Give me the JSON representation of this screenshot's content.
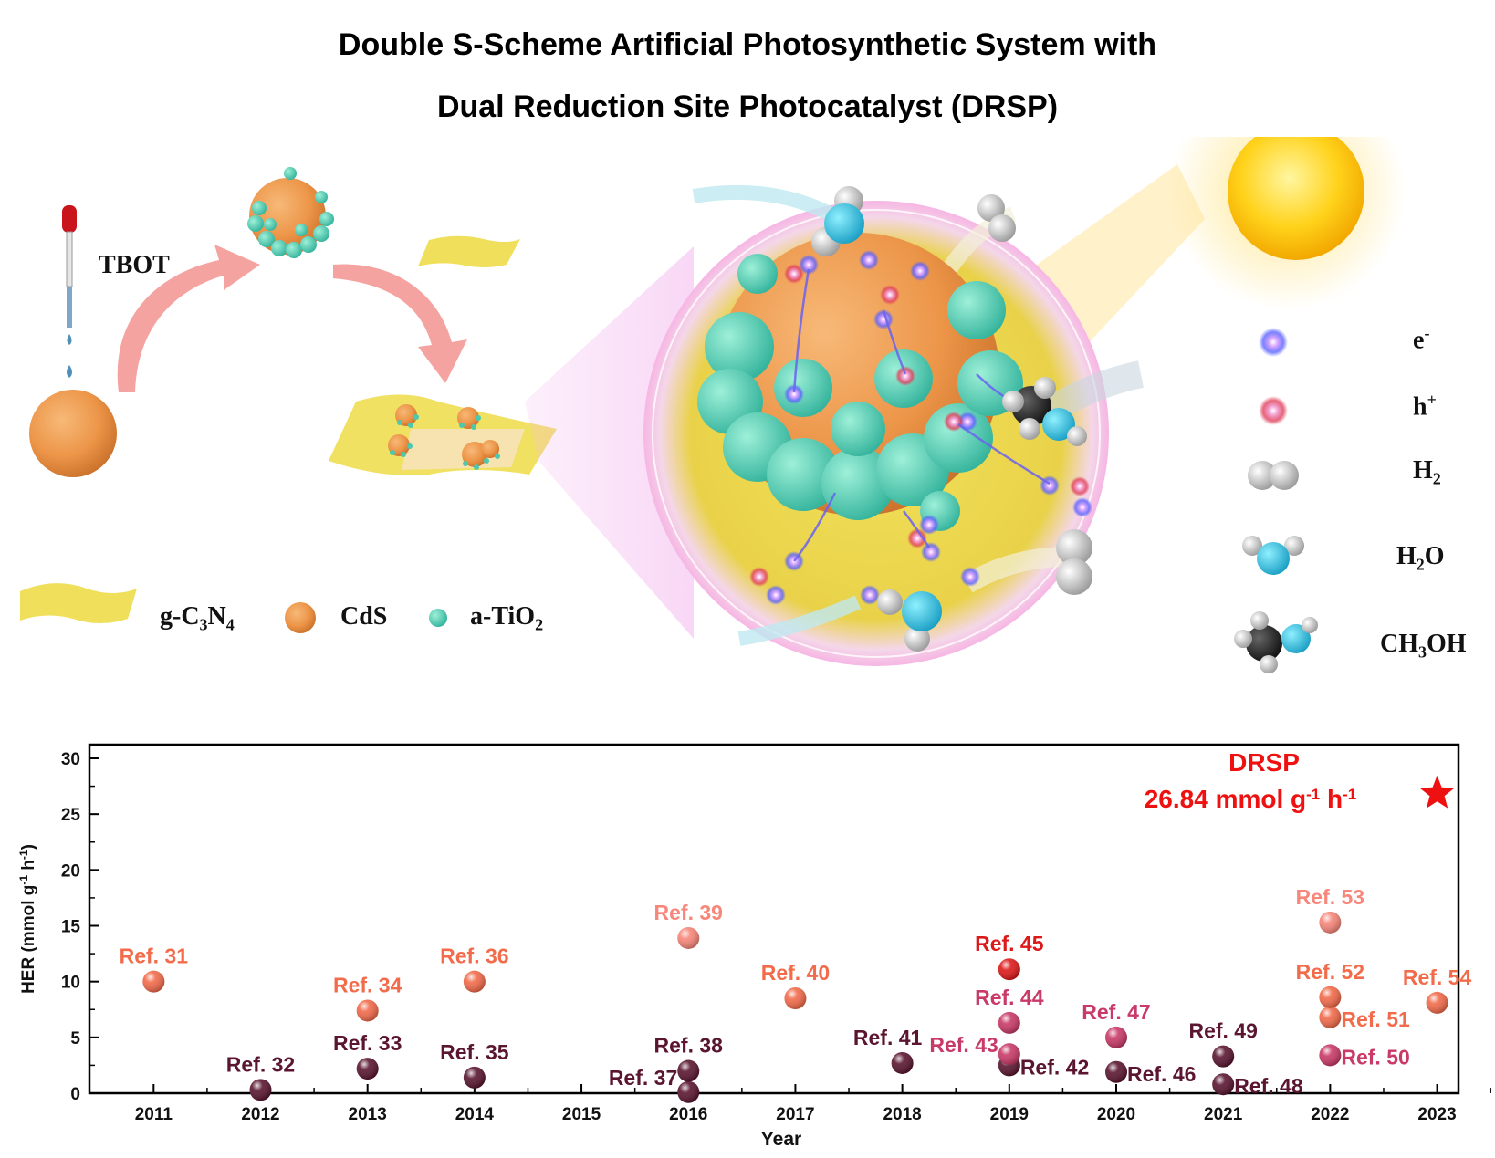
{
  "title": {
    "line1": "Double S-Scheme Artificial Photosynthetic System with",
    "line2": "Dual Reduction Site Photocatalyst (DRSP)"
  },
  "scheme": {
    "reagent_label": "TBOT",
    "materials": [
      {
        "key": "gcn",
        "label": "g-C",
        "sub1": "3",
        "mid": "N",
        "sub2": "4",
        "color": "#f0df5a"
      },
      {
        "key": "cds",
        "label": "CdS",
        "color": "#f0a050"
      },
      {
        "key": "tio2",
        "label": "a-TiO",
        "sub": "2",
        "color": "#4cc7b0"
      }
    ]
  },
  "species_legend": [
    {
      "key": "electron",
      "label": "e",
      "sup": "-",
      "icon": "electron-icon",
      "color": "#5a63ff"
    },
    {
      "key": "hole",
      "label": "h",
      "sup": "+",
      "icon": "hole-icon",
      "color": "#e0405a"
    },
    {
      "key": "h2",
      "label": "H",
      "sub": "2",
      "icon": "hydrogen-molecule-icon"
    },
    {
      "key": "h2o",
      "label": "H",
      "sub": "2",
      "tail": "O",
      "icon": "water-molecule-icon"
    },
    {
      "key": "ch3oh",
      "label": "CH",
      "sub": "3",
      "tail": "OH",
      "icon": "methanol-molecule-icon"
    }
  ],
  "chart_data": {
    "type": "scatter",
    "xlabel": "Year",
    "ylabel": "HER (mmol g-1 h-1)",
    "ylabel_parts": {
      "pre": "HER (mmol g",
      "s1": "-1",
      "mid": " h",
      "s2": "-1",
      "post": ")"
    },
    "xlim": [
      2010.4,
      2023.2
    ],
    "ylim": [
      0,
      30
    ],
    "xticks": [
      2011,
      2012,
      2013,
      2014,
      2015,
      2016,
      2017,
      2018,
      2019,
      2020,
      2021,
      2022,
      2023
    ],
    "yticks": [
      0,
      5,
      10,
      15,
      20,
      25,
      30
    ],
    "highlight": {
      "name": "DRSP",
      "value_text": "26.84 mmol g",
      "value_sup1": "-1",
      "value_mid": " h",
      "value_sup2": "-1",
      "x": 2023,
      "y": 26.84,
      "color": "#ee1111",
      "marker": "star"
    },
    "points": [
      {
        "label": "Ref. 31",
        "x": 2011,
        "y": 10.0,
        "color": "#f26b4b",
        "pos": "above"
      },
      {
        "label": "Ref. 32",
        "x": 2012,
        "y": 0.3,
        "color": "#5a1630",
        "pos": "above"
      },
      {
        "label": "Ref. 33",
        "x": 2013,
        "y": 2.2,
        "color": "#5a1630",
        "pos": "above"
      },
      {
        "label": "Ref. 34",
        "x": 2013,
        "y": 7.4,
        "color": "#f26b4b",
        "pos": "above"
      },
      {
        "label": "Ref. 35",
        "x": 2014,
        "y": 1.4,
        "color": "#5a1630",
        "pos": "above"
      },
      {
        "label": "Ref. 36",
        "x": 2014,
        "y": 10.0,
        "color": "#f26b4b",
        "pos": "above"
      },
      {
        "label": "Ref. 37",
        "x": 2016,
        "y": 0.1,
        "color": "#5a1630",
        "pos": "left"
      },
      {
        "label": "Ref. 38",
        "x": 2016,
        "y": 2.0,
        "color": "#5a1630",
        "pos": "above"
      },
      {
        "label": "Ref. 39",
        "x": 2016,
        "y": 13.9,
        "color": "#f7877a",
        "pos": "above"
      },
      {
        "label": "Ref. 40",
        "x": 2017,
        "y": 8.5,
        "color": "#f26b4b",
        "pos": "above"
      },
      {
        "label": "Ref. 41",
        "x": 2018,
        "y": 2.7,
        "color": "#5a1630",
        "pos": "aboveleft"
      },
      {
        "label": "Ref. 42",
        "x": 2019,
        "y": 2.5,
        "color": "#5a1630",
        "pos": "right"
      },
      {
        "label": "Ref. 43",
        "x": 2019,
        "y": 3.5,
        "color": "#c93a68",
        "pos": "left"
      },
      {
        "label": "Ref. 44",
        "x": 2019,
        "y": 6.3,
        "color": "#c93a68",
        "pos": "above"
      },
      {
        "label": "Ref. 45",
        "x": 2019,
        "y": 11.1,
        "color": "#dd1a1a",
        "pos": "above"
      },
      {
        "label": "Ref. 46",
        "x": 2020,
        "y": 1.9,
        "color": "#5a1630",
        "pos": "right"
      },
      {
        "label": "Ref. 47",
        "x": 2020,
        "y": 5.0,
        "color": "#c93a68",
        "pos": "above"
      },
      {
        "label": "Ref. 48",
        "x": 2021,
        "y": 0.8,
        "color": "#5a1630",
        "pos": "right"
      },
      {
        "label": "Ref. 49",
        "x": 2021,
        "y": 3.3,
        "color": "#5a1630",
        "pos": "above"
      },
      {
        "label": "Ref. 50",
        "x": 2022,
        "y": 3.4,
        "color": "#c93a68",
        "pos": "right"
      },
      {
        "label": "Ref. 51",
        "x": 2022,
        "y": 6.8,
        "color": "#f26b4b",
        "pos": "right"
      },
      {
        "label": "Ref. 52",
        "x": 2022,
        "y": 8.6,
        "color": "#f26b4b",
        "pos": "above"
      },
      {
        "label": "Ref. 53",
        "x": 2022,
        "y": 15.3,
        "color": "#f7877a",
        "pos": "above"
      },
      {
        "label": "Ref. 54",
        "x": 2023,
        "y": 8.1,
        "color": "#f26b4b",
        "pos": "above"
      }
    ]
  }
}
